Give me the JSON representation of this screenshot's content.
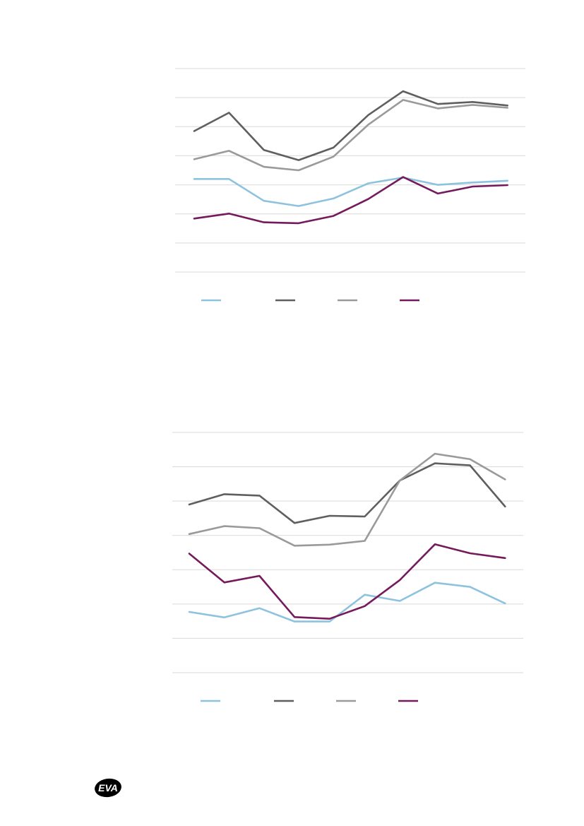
{
  "chart_data": [
    {
      "type": "line",
      "ylim": [
        0,
        7
      ],
      "grid": true,
      "legend_position": "bottom",
      "x": [
        1,
        2,
        3,
        4,
        5,
        6,
        7,
        8,
        9,
        10
      ],
      "series": [
        {
          "color": "#8ec3df",
          "values": [
            3.2,
            3.2,
            2.45,
            2.27,
            2.53,
            3.05,
            3.25,
            3.0,
            3.08,
            3.14
          ]
        },
        {
          "color": "#5f5f61",
          "values": [
            4.85,
            5.48,
            4.2,
            3.85,
            4.28,
            5.4,
            6.22,
            5.78,
            5.85,
            5.73
          ]
        },
        {
          "color": "#9a9a9c",
          "values": [
            3.88,
            4.17,
            3.62,
            3.5,
            3.97,
            5.07,
            5.92,
            5.63,
            5.75,
            5.65
          ]
        },
        {
          "color": "#751a5c",
          "values": [
            1.84,
            2.01,
            1.71,
            1.68,
            1.93,
            2.51,
            3.27,
            2.7,
            2.94,
            2.99
          ]
        }
      ]
    },
    {
      "type": "line",
      "ylim": [
        0,
        7
      ],
      "grid": true,
      "legend_position": "bottom",
      "x": [
        1,
        2,
        3,
        4,
        5,
        6,
        7,
        8,
        9,
        10
      ],
      "series": [
        {
          "color": "#8ec3df",
          "values": [
            1.77,
            1.61,
            1.88,
            1.49,
            1.49,
            2.27,
            2.09,
            2.62,
            2.5,
            2.02
          ]
        },
        {
          "color": "#5f5f61",
          "values": [
            4.9,
            5.2,
            5.16,
            4.36,
            4.57,
            4.55,
            5.6,
            6.1,
            6.04,
            4.84
          ]
        },
        {
          "color": "#9a9a9c",
          "values": [
            4.04,
            4.27,
            4.21,
            3.7,
            3.73,
            3.84,
            5.6,
            6.38,
            6.22,
            5.63
          ]
        },
        {
          "color": "#751a5c",
          "values": [
            3.47,
            2.63,
            2.82,
            1.62,
            1.57,
            1.94,
            2.7,
            3.74,
            3.48,
            3.34
          ]
        }
      ]
    }
  ],
  "logo": {
    "text": "EVA"
  }
}
